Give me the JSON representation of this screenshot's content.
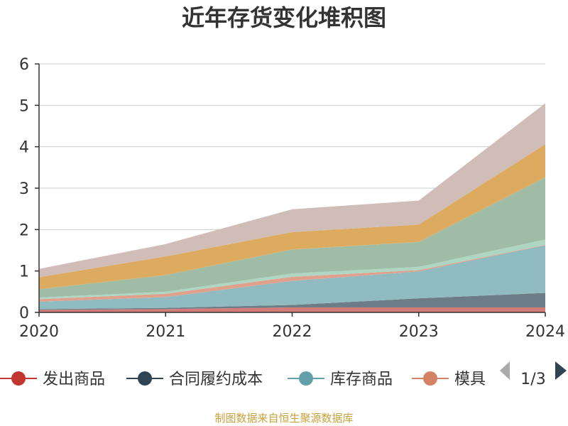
{
  "chart_data": {
    "type": "area",
    "stacked": true,
    "title": "近年存货变化堆积图",
    "x": [
      "2020",
      "2021",
      "2022",
      "2023",
      "2024"
    ],
    "ylim": [
      0,
      6
    ],
    "yticks": [
      0,
      1,
      2,
      3,
      4,
      5,
      6
    ],
    "grid": true,
    "series": [
      {
        "name": "发出商品",
        "color": "#c23531",
        "area_color": "#d47b77",
        "values": [
          0.06,
          0.08,
          0.12,
          0.12,
          0.12
        ]
      },
      {
        "name": "合同履约成本",
        "color": "#2f4554",
        "area_color": "#6e7c88",
        "values": [
          0.02,
          0.03,
          0.06,
          0.22,
          0.35
        ]
      },
      {
        "name": "库存商品",
        "color": "#61a0a8",
        "area_color": "#90bbc1",
        "values": [
          0.18,
          0.26,
          0.58,
          0.65,
          1.15
        ]
      },
      {
        "name": "模具",
        "color": "#d48265",
        "area_color": "#dfa08c",
        "values": [
          0.06,
          0.08,
          0.1,
          0.03,
          0.01
        ]
      },
      {
        "name": "",
        "color": "#91c7ae",
        "area_color": "#aed6c3",
        "values": [
          0.04,
          0.05,
          0.08,
          0.08,
          0.13
        ]
      },
      {
        "name": "",
        "color": "#91b09a",
        "area_color": "#9fbca6",
        "values": [
          0.2,
          0.4,
          0.58,
          0.6,
          1.5
        ]
      },
      {
        "name": "",
        "color": "#d9a44f",
        "area_color": "#dcab60",
        "values": [
          0.29,
          0.45,
          0.42,
          0.42,
          0.8
        ]
      },
      {
        "name": "",
        "color": "#c9b1aa",
        "area_color": "#d0bdb8",
        "values": [
          0.2,
          0.3,
          0.55,
          0.58,
          0.99
        ]
      }
    ]
  },
  "legend": {
    "items": [
      "发出商品",
      "合同履约成本",
      "库存商品",
      "模具"
    ],
    "page": "1/3"
  },
  "source": "制图数据来自恒生聚源数据库"
}
